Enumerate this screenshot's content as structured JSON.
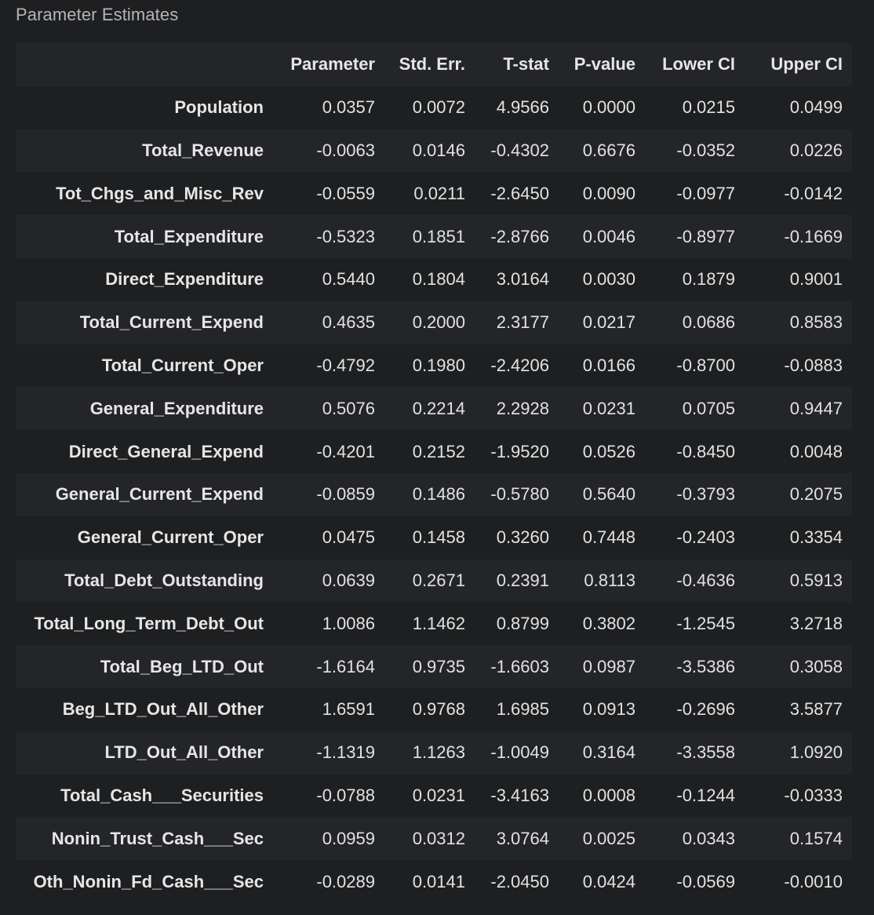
{
  "title": "Parameter Estimates",
  "columns": [
    "",
    "Parameter",
    "Std. Err.",
    "T-stat",
    "P-value",
    "Lower CI",
    "Upper CI"
  ],
  "rows": [
    {
      "label": "Population",
      "values": [
        "0.0357",
        "0.0072",
        "4.9566",
        "0.0000",
        "0.0215",
        "0.0499"
      ]
    },
    {
      "label": "Total_Revenue",
      "values": [
        "-0.0063",
        "0.0146",
        "-0.4302",
        "0.6676",
        "-0.0352",
        "0.0226"
      ]
    },
    {
      "label": "Tot_Chgs_and_Misc_Rev",
      "values": [
        "-0.0559",
        "0.0211",
        "-2.6450",
        "0.0090",
        "-0.0977",
        "-0.0142"
      ]
    },
    {
      "label": "Total_Expenditure",
      "values": [
        "-0.5323",
        "0.1851",
        "-2.8766",
        "0.0046",
        "-0.8977",
        "-0.1669"
      ]
    },
    {
      "label": "Direct_Expenditure",
      "values": [
        "0.5440",
        "0.1804",
        "3.0164",
        "0.0030",
        "0.1879",
        "0.9001"
      ]
    },
    {
      "label": "Total_Current_Expend",
      "values": [
        "0.4635",
        "0.2000",
        "2.3177",
        "0.0217",
        "0.0686",
        "0.8583"
      ]
    },
    {
      "label": "Total_Current_Oper",
      "values": [
        "-0.4792",
        "0.1980",
        "-2.4206",
        "0.0166",
        "-0.8700",
        "-0.0883"
      ]
    },
    {
      "label": "General_Expenditure",
      "values": [
        "0.5076",
        "0.2214",
        "2.2928",
        "0.0231",
        "0.0705",
        "0.9447"
      ]
    },
    {
      "label": "Direct_General_Expend",
      "values": [
        "-0.4201",
        "0.2152",
        "-1.9520",
        "0.0526",
        "-0.8450",
        "0.0048"
      ]
    },
    {
      "label": "General_Current_Expend",
      "values": [
        "-0.0859",
        "0.1486",
        "-0.5780",
        "0.5640",
        "-0.3793",
        "0.2075"
      ]
    },
    {
      "label": "General_Current_Oper",
      "values": [
        "0.0475",
        "0.1458",
        "0.3260",
        "0.7448",
        "-0.2403",
        "0.3354"
      ]
    },
    {
      "label": "Total_Debt_Outstanding",
      "values": [
        "0.0639",
        "0.2671",
        "0.2391",
        "0.8113",
        "-0.4636",
        "0.5913"
      ]
    },
    {
      "label": "Total_Long_Term_Debt_Out",
      "values": [
        "1.0086",
        "1.1462",
        "0.8799",
        "0.3802",
        "-1.2545",
        "3.2718"
      ]
    },
    {
      "label": "Total_Beg_LTD_Out",
      "values": [
        "-1.6164",
        "0.9735",
        "-1.6603",
        "0.0987",
        "-3.5386",
        "0.3058"
      ]
    },
    {
      "label": "Beg_LTD_Out_All_Other",
      "values": [
        "1.6591",
        "0.9768",
        "1.6985",
        "0.0913",
        "-0.2696",
        "3.5877"
      ]
    },
    {
      "label": "LTD_Out_All_Other",
      "values": [
        "-1.1319",
        "1.1263",
        "-1.0049",
        "0.3164",
        "-3.3558",
        "1.0920"
      ]
    },
    {
      "label": "Total_Cash___Securities",
      "values": [
        "-0.0788",
        "0.0231",
        "-3.4163",
        "0.0008",
        "-0.1244",
        "-0.0333"
      ]
    },
    {
      "label": "Nonin_Trust_Cash___Sec",
      "values": [
        "0.0959",
        "0.0312",
        "3.0764",
        "0.0025",
        "0.0343",
        "0.1574"
      ]
    },
    {
      "label": "Oth_Nonin_Fd_Cash___Sec",
      "values": [
        "-0.0289",
        "0.0141",
        "-2.0450",
        "0.0424",
        "-0.0569",
        "-0.0010"
      ]
    }
  ]
}
